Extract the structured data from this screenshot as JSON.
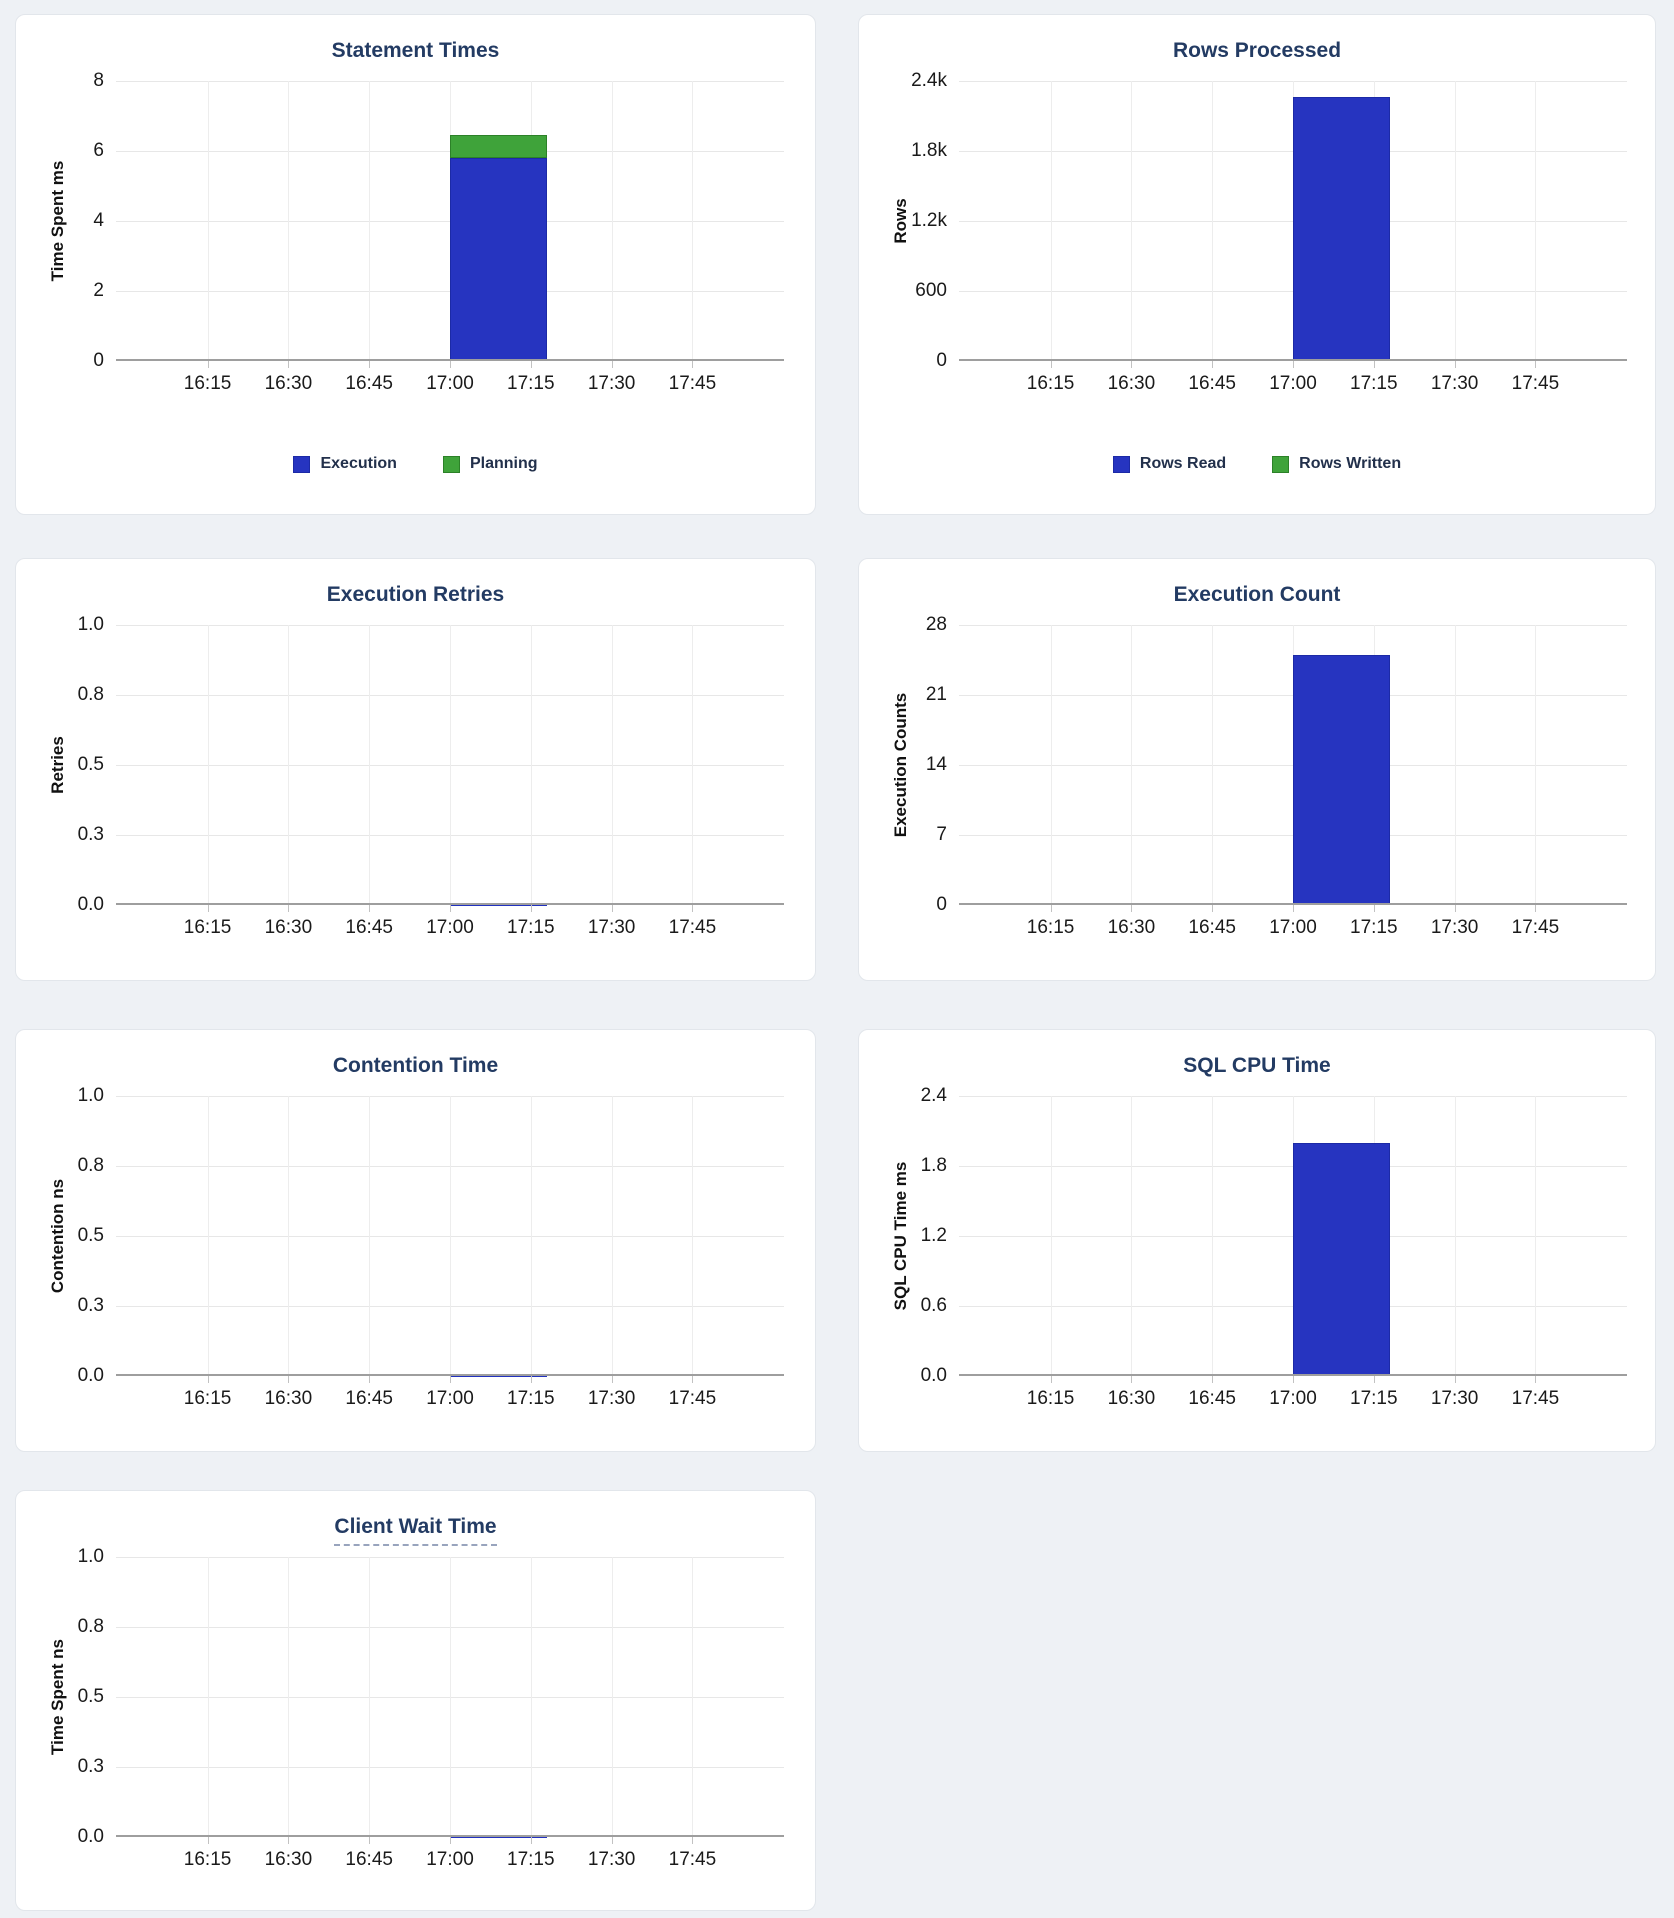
{
  "colors": {
    "execution_blue": "#2634c0",
    "planning_green": "#3fa33a",
    "blue_border": "#1c2aa6",
    "green_border": "#2c8128",
    "chart_title": "#233b63",
    "legend_text": "#22304b",
    "zero_line": "#2131bf"
  },
  "x_axis": {
    "range_start": "15:58",
    "range_end": "18:02",
    "tick_labels": [
      "16:15",
      "16:30",
      "16:45",
      "17:00",
      "17:15",
      "17:30",
      "17:45"
    ]
  },
  "chart_data": [
    {
      "id": "statement-times",
      "type": "bar",
      "title": "Statement Times",
      "title_underline": false,
      "ylabel": "Time Spent ms",
      "ylim": [
        0,
        8
      ],
      "ytick_labels": [
        "0",
        "2",
        "4",
        "6",
        "8"
      ],
      "xticks": [
        "16:15",
        "16:30",
        "16:45",
        "17:00",
        "17:15",
        "17:30",
        "17:45"
      ],
      "grid": true,
      "legend_position": "bottom-center",
      "bars": [
        {
          "x_start": "17:00",
          "x_end": "17:18",
          "segments": [
            {
              "name": "Execution",
              "value": 5.8,
              "color_key": "execution_blue",
              "border_key": "blue_border"
            },
            {
              "name": "Planning",
              "value": 0.65,
              "color_key": "planning_green",
              "border_key": "green_border"
            }
          ]
        }
      ],
      "legend": [
        {
          "label": "Execution",
          "color_key": "execution_blue",
          "border_key": "blue_border"
        },
        {
          "label": "Planning",
          "color_key": "planning_green",
          "border_key": "green_border"
        }
      ]
    },
    {
      "id": "rows-processed",
      "type": "bar",
      "title": "Rows Processed",
      "title_underline": false,
      "ylabel": "Rows",
      "ylim": [
        0,
        2400
      ],
      "ytick_labels": [
        "0",
        "600",
        "1.2k",
        "1.8k",
        "2.4k"
      ],
      "xticks": [
        "16:15",
        "16:30",
        "16:45",
        "17:00",
        "17:15",
        "17:30",
        "17:45"
      ],
      "grid": true,
      "legend_position": "bottom-center",
      "bars": [
        {
          "x_start": "17:00",
          "x_end": "17:18",
          "segments": [
            {
              "name": "Rows Read",
              "value": 2260,
              "color_key": "execution_blue",
              "border_key": "blue_border"
            },
            {
              "name": "Rows Written",
              "value": 0,
              "color_key": "planning_green",
              "border_key": "green_border"
            }
          ]
        }
      ],
      "legend": [
        {
          "label": "Rows Read",
          "color_key": "execution_blue",
          "border_key": "blue_border"
        },
        {
          "label": "Rows Written",
          "color_key": "planning_green",
          "border_key": "green_border"
        }
      ]
    },
    {
      "id": "execution-retries",
      "type": "bar",
      "title": "Execution Retries",
      "title_underline": false,
      "ylabel": "Retries",
      "ylim": [
        0,
        1.0
      ],
      "ytick_labels": [
        "0.0",
        "0.3",
        "0.5",
        "0.8",
        "1.0"
      ],
      "xticks": [
        "16:15",
        "16:30",
        "16:45",
        "17:00",
        "17:15",
        "17:30",
        "17:45"
      ],
      "grid": true,
      "bars": [
        {
          "x_start": "17:00",
          "x_end": "17:18",
          "segments": [
            {
              "name": "Retries",
              "value": 0,
              "color_key": "execution_blue",
              "border_key": "blue_border"
            }
          ]
        }
      ],
      "legend": null
    },
    {
      "id": "execution-count",
      "type": "bar",
      "title": "Execution Count",
      "title_underline": false,
      "ylabel": "Execution Counts",
      "ylim": [
        0,
        28
      ],
      "ytick_labels": [
        "0",
        "7",
        "14",
        "21",
        "28"
      ],
      "xticks": [
        "16:15",
        "16:30",
        "16:45",
        "17:00",
        "17:15",
        "17:30",
        "17:45"
      ],
      "grid": true,
      "bars": [
        {
          "x_start": "17:00",
          "x_end": "17:18",
          "segments": [
            {
              "name": "Execution Count",
              "value": 25,
              "color_key": "execution_blue",
              "border_key": "blue_border"
            }
          ]
        }
      ],
      "legend": null
    },
    {
      "id": "contention-time",
      "type": "bar",
      "title": "Contention Time",
      "title_underline": false,
      "ylabel": "Contention ns",
      "ylim": [
        0,
        1.0
      ],
      "ytick_labels": [
        "0.0",
        "0.3",
        "0.5",
        "0.8",
        "1.0"
      ],
      "xticks": [
        "16:15",
        "16:30",
        "16:45",
        "17:00",
        "17:15",
        "17:30",
        "17:45"
      ],
      "grid": true,
      "bars": [
        {
          "x_start": "17:00",
          "x_end": "17:18",
          "segments": [
            {
              "name": "Contention",
              "value": 0,
              "color_key": "execution_blue",
              "border_key": "blue_border"
            }
          ]
        }
      ],
      "legend": null
    },
    {
      "id": "sql-cpu-time",
      "type": "bar",
      "title": "SQL CPU Time",
      "title_underline": false,
      "ylabel": "SQL CPU Time ms",
      "ylim": [
        0,
        2.4
      ],
      "ytick_labels": [
        "0.0",
        "0.6",
        "1.2",
        "1.8",
        "2.4"
      ],
      "xticks": [
        "16:15",
        "16:30",
        "16:45",
        "17:00",
        "17:15",
        "17:30",
        "17:45"
      ],
      "grid": true,
      "bars": [
        {
          "x_start": "17:00",
          "x_end": "17:18",
          "segments": [
            {
              "name": "SQL CPU Time",
              "value": 2.0,
              "color_key": "execution_blue",
              "border_key": "blue_border"
            }
          ]
        }
      ],
      "legend": null
    },
    {
      "id": "client-wait-time",
      "type": "bar",
      "title": "Client Wait Time",
      "title_underline": true,
      "ylabel": "Time Spent ns",
      "ylim": [
        0,
        1.0
      ],
      "ytick_labels": [
        "0.0",
        "0.3",
        "0.5",
        "0.8",
        "1.0"
      ],
      "xticks": [
        "16:15",
        "16:30",
        "16:45",
        "17:00",
        "17:15",
        "17:30",
        "17:45"
      ],
      "grid": true,
      "bars": [
        {
          "x_start": "17:00",
          "x_end": "17:18",
          "segments": [
            {
              "name": "Client Wait",
              "value": 0,
              "color_key": "execution_blue",
              "border_key": "blue_border"
            }
          ]
        }
      ],
      "legend": null
    }
  ]
}
